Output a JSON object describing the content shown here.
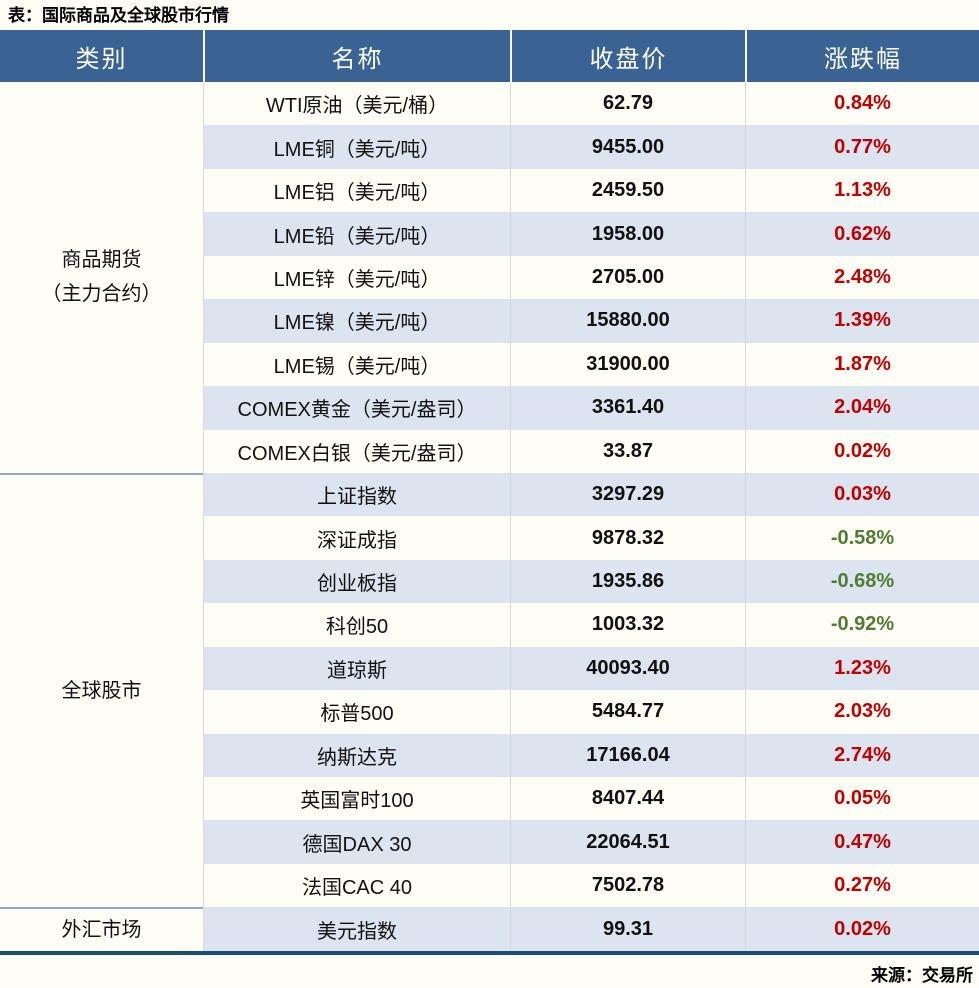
{
  "chart_data": {
    "type": "table",
    "title": "表：国际商品及全球股市行情",
    "columns": [
      "类别",
      "名称",
      "收盘价",
      "涨跌幅"
    ],
    "groups": [
      {
        "category_lines": [
          "商品期货",
          "（主力合约）"
        ],
        "rows": [
          {
            "name": "WTI原油（美元/桶）",
            "close": "62.79",
            "change": "0.84%"
          },
          {
            "name": "LME铜（美元/吨）",
            "close": "9455.00",
            "change": "0.77%"
          },
          {
            "name": "LME铝（美元/吨）",
            "close": "2459.50",
            "change": "1.13%"
          },
          {
            "name": "LME铅（美元/吨）",
            "close": "1958.00",
            "change": "0.62%"
          },
          {
            "name": "LME锌（美元/吨）",
            "close": "2705.00",
            "change": "2.48%"
          },
          {
            "name": "LME镍（美元/吨）",
            "close": "15880.00",
            "change": "1.39%"
          },
          {
            "name": "LME锡（美元/吨）",
            "close": "31900.00",
            "change": "1.87%"
          },
          {
            "name": "COMEX黄金（美元/盎司）",
            "close": "3361.40",
            "change": "2.04%"
          },
          {
            "name": "COMEX白银（美元/盎司）",
            "close": "33.87",
            "change": "0.02%"
          }
        ]
      },
      {
        "category_lines": [
          "全球股市"
        ],
        "rows": [
          {
            "name": "上证指数",
            "close": "3297.29",
            "change": "0.03%"
          },
          {
            "name": "深证成指",
            "close": "9878.32",
            "change": "-0.58%"
          },
          {
            "name": "创业板指",
            "close": "1935.86",
            "change": "-0.68%"
          },
          {
            "name": "科创50",
            "close": "1003.32",
            "change": "-0.92%"
          },
          {
            "name": "道琼斯",
            "close": "40093.40",
            "change": "1.23%"
          },
          {
            "name": "标普500",
            "close": "5484.77",
            "change": "2.03%"
          },
          {
            "name": "纳斯达克",
            "close": "17166.04",
            "change": "2.74%"
          },
          {
            "name": "英国富时100",
            "close": "8407.44",
            "change": "0.05%"
          },
          {
            "name": "德国DAX 30",
            "close": "22064.51",
            "change": "0.47%"
          },
          {
            "name": "法国CAC 40",
            "close": "7502.78",
            "change": "0.27%"
          }
        ]
      },
      {
        "category_lines": [
          "外汇市场"
        ],
        "rows": [
          {
            "name": "美元指数",
            "close": "99.31",
            "change": "0.02%"
          }
        ]
      }
    ],
    "source": "来源：交易所"
  },
  "colors": {
    "header_bg": "#3A6292",
    "band_row": "#DBE4EF",
    "page_bg": "#FFFEF6",
    "up_red": "#C00000",
    "down_green": "#507C34",
    "bottom_rule": "#1F4E79",
    "group_separator": "#8FA9C9"
  }
}
